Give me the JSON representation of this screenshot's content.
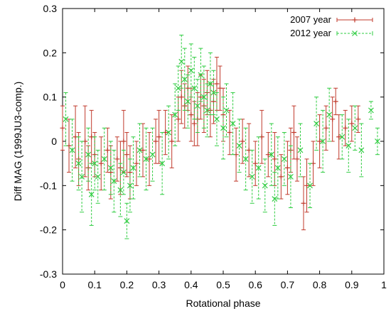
{
  "chart_data": {
    "type": "scatter",
    "title": "",
    "xlabel": "Rotational phase",
    "ylabel": "Diff MAG (1999JU3-comp.)",
    "xlim": [
      0,
      1
    ],
    "ylim": [
      -0.3,
      0.3
    ],
    "xticks": [
      "0",
      "0.1",
      "0.2",
      "0.3",
      "0.4",
      "0.5",
      "0.6",
      "0.7",
      "0.8",
      "0.9",
      "1"
    ],
    "yticks": [
      "-0.3",
      "-0.2",
      "-0.1",
      "0",
      "0.1",
      "0.2",
      "0.3"
    ],
    "grid": false,
    "legend_position": "top-right",
    "series": [
      {
        "name": "2007 year",
        "color": "#c0392b",
        "marker": "plus",
        "line_style": "solid",
        "x": [
          0.0,
          0.02,
          0.04,
          0.05,
          0.07,
          0.08,
          0.09,
          0.1,
          0.12,
          0.14,
          0.15,
          0.17,
          0.18,
          0.19,
          0.2,
          0.21,
          0.23,
          0.25,
          0.27,
          0.29,
          0.3,
          0.32,
          0.34,
          0.36,
          0.37,
          0.38,
          0.39,
          0.4,
          0.41,
          0.42,
          0.43,
          0.44,
          0.45,
          0.46,
          0.47,
          0.48,
          0.49,
          0.5,
          0.52,
          0.54,
          0.56,
          0.58,
          0.6,
          0.62,
          0.64,
          0.66,
          0.68,
          0.7,
          0.71,
          0.72,
          0.73,
          0.75,
          0.76,
          0.78,
          0.8,
          0.82,
          0.84,
          0.85,
          0.86,
          0.88,
          0.9,
          0.92
        ],
        "y": [
          0.03,
          -0.01,
          0.01,
          -0.04,
          0.0,
          -0.06,
          0.01,
          -0.03,
          -0.05,
          -0.02,
          -0.07,
          -0.04,
          -0.06,
          0.0,
          -0.03,
          -0.07,
          -0.05,
          -0.02,
          -0.04,
          0.0,
          0.01,
          0.02,
          0.0,
          0.05,
          0.1,
          0.08,
          0.12,
          0.06,
          0.04,
          0.05,
          0.1,
          0.08,
          0.11,
          0.07,
          0.09,
          0.13,
          0.12,
          0.06,
          0.02,
          -0.03,
          0.0,
          -0.02,
          -0.05,
          0.01,
          -0.03,
          -0.04,
          -0.08,
          -0.06,
          -0.02,
          0.02,
          -0.04,
          -0.14,
          -0.1,
          -0.05,
          0.0,
          0.03,
          0.05,
          0.09,
          0.01,
          0.03,
          0.04,
          0.05
        ],
        "err": [
          0.05,
          0.06,
          0.07,
          0.06,
          0.08,
          0.05,
          0.06,
          0.05,
          0.06,
          0.05,
          0.06,
          0.05,
          0.06,
          0.07,
          0.05,
          0.06,
          0.05,
          0.06,
          0.06,
          0.05,
          0.06,
          0.05,
          0.06,
          0.05,
          0.06,
          0.05,
          0.05,
          0.06,
          0.05,
          0.06,
          0.05,
          0.06,
          0.05,
          0.06,
          0.05,
          0.06,
          0.05,
          0.06,
          0.05,
          0.06,
          0.05,
          0.06,
          0.05,
          0.06,
          0.05,
          0.06,
          0.05,
          0.06,
          0.05,
          0.06,
          0.05,
          0.06,
          0.06,
          0.05,
          0.06,
          0.05,
          0.05,
          0.03,
          0.05,
          0.04,
          0.04,
          0.03
        ]
      },
      {
        "name": "2012 year",
        "color": "#2ecc40",
        "marker": "cross",
        "line_style": "dashed",
        "x": [
          0.01,
          0.03,
          0.05,
          0.06,
          0.08,
          0.09,
          0.1,
          0.11,
          0.13,
          0.15,
          0.16,
          0.18,
          0.19,
          0.2,
          0.21,
          0.22,
          0.24,
          0.26,
          0.28,
          0.31,
          0.33,
          0.35,
          0.36,
          0.37,
          0.38,
          0.39,
          0.4,
          0.41,
          0.42,
          0.43,
          0.44,
          0.45,
          0.46,
          0.47,
          0.48,
          0.5,
          0.51,
          0.53,
          0.55,
          0.57,
          0.59,
          0.61,
          0.63,
          0.65,
          0.66,
          0.67,
          0.69,
          0.71,
          0.74,
          0.77,
          0.79,
          0.81,
          0.83,
          0.87,
          0.89,
          0.91,
          0.93,
          0.96,
          0.98
        ],
        "y": [
          0.05,
          -0.02,
          -0.05,
          -0.08,
          -0.03,
          -0.12,
          -0.05,
          -0.08,
          -0.04,
          -0.06,
          -0.09,
          -0.11,
          -0.07,
          -0.18,
          -0.1,
          -0.06,
          -0.02,
          -0.04,
          -0.03,
          -0.05,
          0.02,
          0.06,
          0.12,
          0.18,
          0.14,
          0.09,
          0.16,
          0.12,
          0.08,
          0.15,
          0.1,
          0.07,
          0.13,
          0.11,
          0.05,
          0.03,
          0.07,
          0.04,
          -0.01,
          -0.04,
          -0.08,
          -0.06,
          -0.1,
          -0.03,
          -0.13,
          -0.06,
          -0.04,
          -0.08,
          -0.02,
          -0.1,
          0.04,
          0.0,
          0.06,
          0.01,
          -0.01,
          0.03,
          -0.02,
          0.07,
          0.0
        ],
        "err": [
          0.06,
          0.07,
          0.06,
          0.08,
          0.06,
          0.07,
          0.06,
          0.06,
          0.07,
          0.06,
          0.07,
          0.06,
          0.05,
          0.04,
          0.06,
          0.07,
          0.06,
          0.07,
          0.06,
          0.07,
          0.06,
          0.07,
          0.05,
          0.06,
          0.07,
          0.06,
          0.06,
          0.07,
          0.06,
          0.06,
          0.07,
          0.06,
          0.07,
          0.05,
          0.06,
          0.07,
          0.06,
          0.07,
          0.06,
          0.07,
          0.06,
          0.07,
          0.06,
          0.07,
          0.06,
          0.07,
          0.06,
          0.07,
          0.06,
          0.05,
          0.06,
          0.07,
          0.06,
          0.05,
          0.06,
          0.05,
          0.06,
          0.02,
          0.03
        ]
      }
    ]
  }
}
